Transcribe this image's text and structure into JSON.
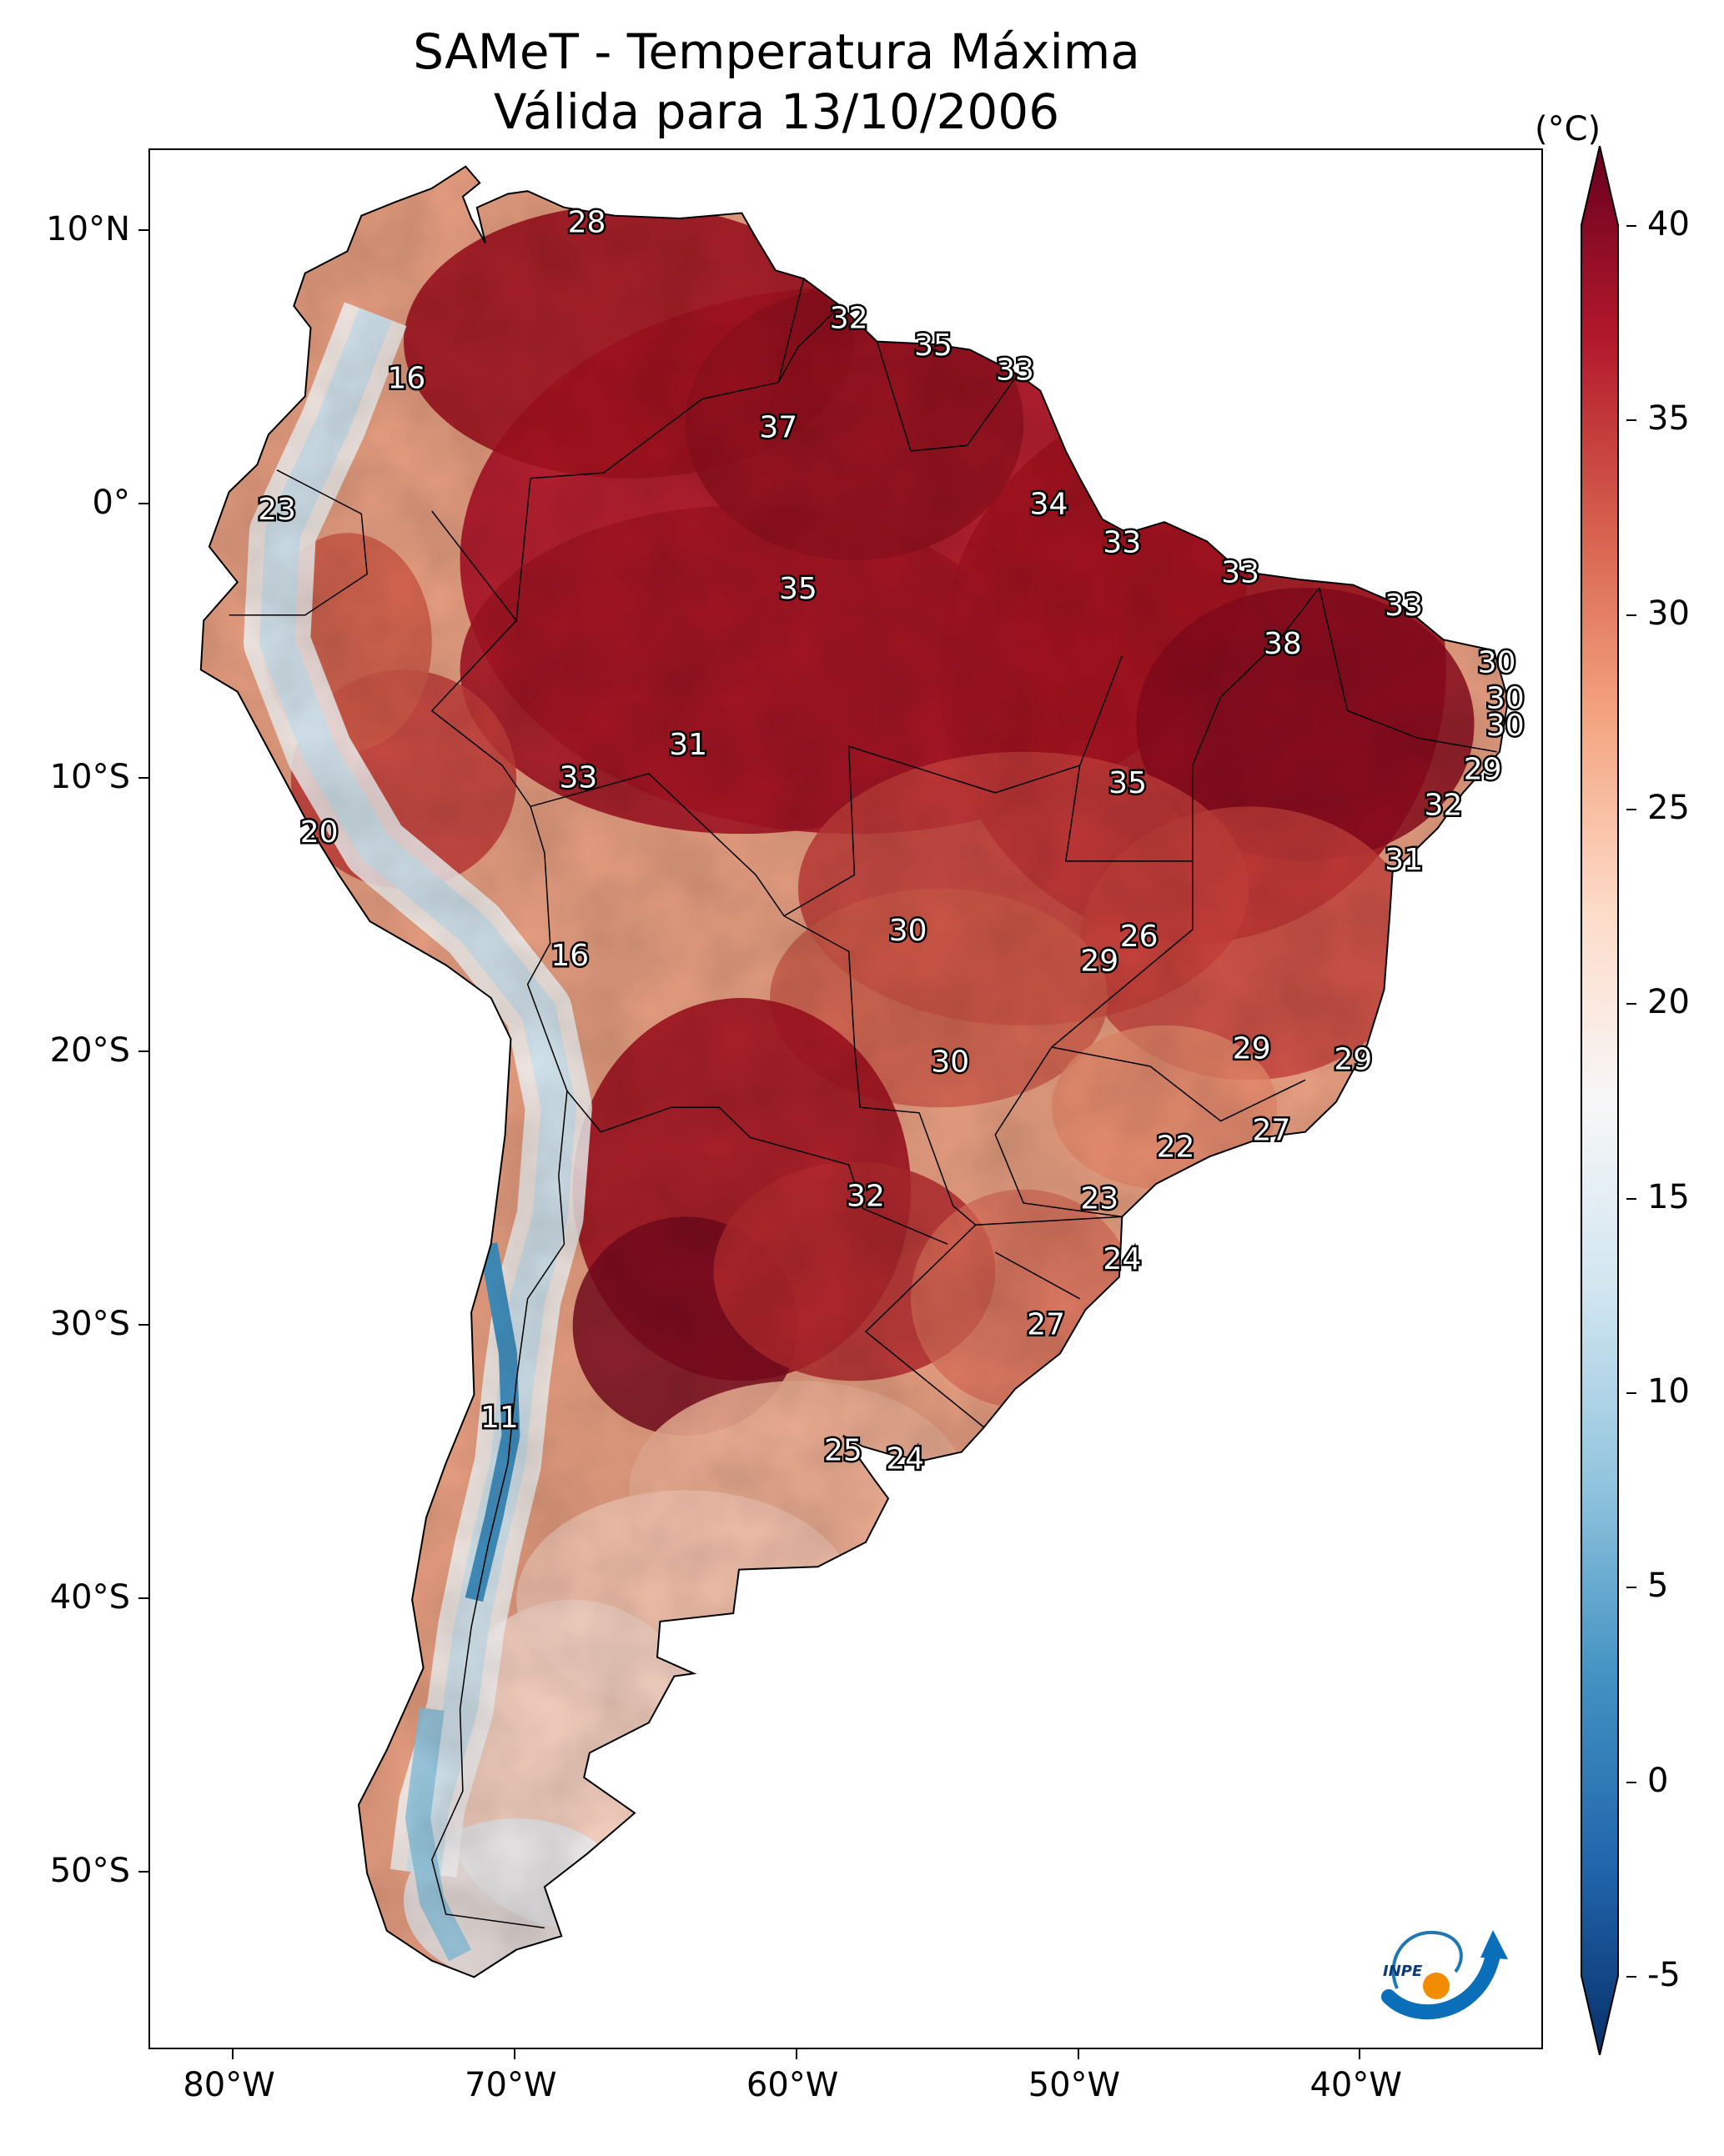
{
  "title": "SAMeT - Temperatura Máxima",
  "subtitle": "Válida para 13/10/2006",
  "colorbar": {
    "unit": "(°C)",
    "ticks": [
      "40",
      "35",
      "30",
      "25",
      "20",
      "15",
      "10",
      "5",
      "0",
      "-5"
    ],
    "range": [
      -5,
      40
    ],
    "colors": [
      "#08306b",
      "#2166ac",
      "#4393c3",
      "#92c5de",
      "#d1e5f0",
      "#f7f7f7",
      "#fddbc7",
      "#f4a582",
      "#d6604d",
      "#b2182b",
      "#67001f"
    ]
  },
  "axes": {
    "lon_labels": [
      "80°W",
      "70°W",
      "60°W",
      "50°W",
      "40°W"
    ],
    "lat_labels": [
      "10°N",
      "0°",
      "10°S",
      "20°S",
      "30°S",
      "40°S",
      "50°S"
    ]
  },
  "station_values": [
    {
      "lon": -67.5,
      "lat": 10.3,
      "text": "28"
    },
    {
      "lon": -73.9,
      "lat": 4.6,
      "text": "16"
    },
    {
      "lon": -78.5,
      "lat": -0.2,
      "text": "23"
    },
    {
      "lon": -58.2,
      "lat": 6.8,
      "text": "32"
    },
    {
      "lon": -55.2,
      "lat": 5.8,
      "text": "35"
    },
    {
      "lon": -52.3,
      "lat": 4.9,
      "text": "33"
    },
    {
      "lon": -60.7,
      "lat": 2.8,
      "text": "37"
    },
    {
      "lon": -51.1,
      "lat": 0.0,
      "text": "34"
    },
    {
      "lon": -48.5,
      "lat": -1.4,
      "text": "33"
    },
    {
      "lon": -44.3,
      "lat": -2.5,
      "text": "33"
    },
    {
      "lon": -60.0,
      "lat": -3.1,
      "text": "35"
    },
    {
      "lon": -38.5,
      "lat": -3.7,
      "text": "33"
    },
    {
      "lon": -42.8,
      "lat": -5.1,
      "text": "38"
    },
    {
      "lon": -35.2,
      "lat": -5.8,
      "text": "30"
    },
    {
      "lon": -34.9,
      "lat": -7.1,
      "text": "30"
    },
    {
      "lon": -34.9,
      "lat": -8.1,
      "text": "30"
    },
    {
      "lon": -35.7,
      "lat": -9.7,
      "text": "29"
    },
    {
      "lon": -37.1,
      "lat": -11.0,
      "text": "32"
    },
    {
      "lon": -38.5,
      "lat": -13.0,
      "text": "31"
    },
    {
      "lon": -63.9,
      "lat": -8.8,
      "text": "31"
    },
    {
      "lon": -67.8,
      "lat": -10.0,
      "text": "33"
    },
    {
      "lon": -48.3,
      "lat": -10.2,
      "text": "35"
    },
    {
      "lon": -77.0,
      "lat": -12.0,
      "text": "20"
    },
    {
      "lon": -68.1,
      "lat": -16.5,
      "text": "16"
    },
    {
      "lon": -56.1,
      "lat": -15.6,
      "text": "30"
    },
    {
      "lon": -47.9,
      "lat": -15.8,
      "text": "26"
    },
    {
      "lon": -49.3,
      "lat": -16.7,
      "text": "29"
    },
    {
      "lon": -43.9,
      "lat": -19.9,
      "text": "29"
    },
    {
      "lon": -40.3,
      "lat": -20.3,
      "text": "29"
    },
    {
      "lon": -54.6,
      "lat": -20.4,
      "text": "30"
    },
    {
      "lon": -43.2,
      "lat": -22.9,
      "text": "27"
    },
    {
      "lon": -46.6,
      "lat": -23.5,
      "text": "22"
    },
    {
      "lon": -57.6,
      "lat": -25.3,
      "text": "32"
    },
    {
      "lon": -49.3,
      "lat": -25.4,
      "text": "23"
    },
    {
      "lon": -48.5,
      "lat": -27.6,
      "text": "24"
    },
    {
      "lon": -51.2,
      "lat": -30.0,
      "text": "27"
    },
    {
      "lon": -70.6,
      "lat": -33.4,
      "text": "11"
    },
    {
      "lon": -58.4,
      "lat": -34.6,
      "text": "25"
    },
    {
      "lon": -56.2,
      "lat": -34.9,
      "text": "24"
    }
  ]
}
